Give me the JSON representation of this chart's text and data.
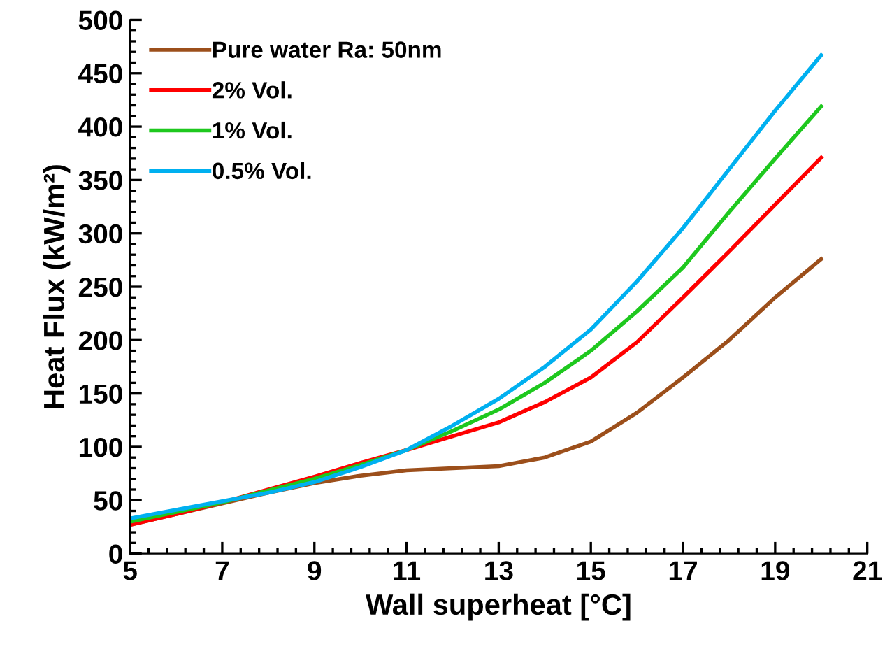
{
  "chart_data": {
    "type": "line",
    "xlabel": "Wall superheat [°C]",
    "ylabel": "Heat Flux (kW/m²)",
    "x": [
      5,
      6,
      7,
      8,
      9,
      10,
      11,
      12,
      13,
      14,
      15,
      16,
      17,
      18,
      19,
      20
    ],
    "series": [
      {
        "name": "Pure water Ra: 50nm",
        "color": "#9c4f1b",
        "values": [
          27,
          37,
          47,
          57,
          66,
          73,
          78,
          80,
          82,
          90,
          105,
          132,
          165,
          200,
          240,
          276
        ]
      },
      {
        "name": "2% Vol.",
        "color": "#ff0000",
        "values": [
          27,
          37,
          48,
          60,
          72,
          85,
          97,
          110,
          123,
          142,
          165,
          198,
          240,
          283,
          327,
          371
        ]
      },
      {
        "name": "1% Vol.",
        "color": "#1ec81e",
        "values": [
          30,
          39,
          48,
          59,
          70,
          83,
          97,
          115,
          135,
          160,
          190,
          227,
          268,
          320,
          370,
          419
        ]
      },
      {
        "name": "0.5% Vol.",
        "color": "#00b0f0",
        "values": [
          33,
          41,
          49,
          57,
          67,
          81,
          97,
          120,
          145,
          175,
          210,
          255,
          305,
          360,
          415,
          467
        ]
      }
    ],
    "xlim": [
      5,
      21
    ],
    "xticks": [
      5,
      7,
      9,
      11,
      13,
      15,
      17,
      19,
      21
    ],
    "ylim": [
      0,
      500
    ],
    "yticks": [
      0,
      50,
      100,
      150,
      200,
      250,
      300,
      350,
      400,
      450,
      500
    ],
    "grid": false,
    "legend": "top left",
    "marker": "none",
    "line_style": "solid"
  }
}
